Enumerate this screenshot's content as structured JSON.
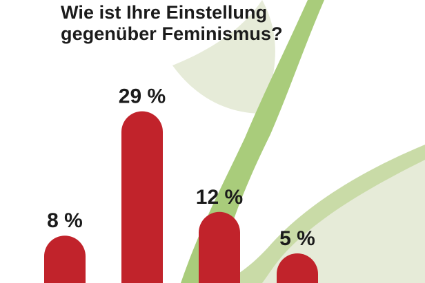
{
  "title_lines": [
    "Wie ist Ihre Einstellung",
    "gegenüber Feminismus?"
  ],
  "colors": {
    "bar": "#c1232b",
    "label": "#1b1b1b",
    "leaf_light": "#e6ebd8",
    "leaf_mid": "#c9dba7",
    "leaf_dark": "#a9cc7b",
    "background": "#ffffff"
  },
  "chart_data": {
    "type": "bar",
    "title": "Wie ist Ihre Einstellung gegenüber Feminismus?",
    "categories": [
      "",
      "",
      "",
      ""
    ],
    "values": [
      8,
      29,
      12,
      5
    ],
    "value_labels": [
      "8 %",
      "29 %",
      "12 %",
      "5 %"
    ],
    "unit": "%",
    "xlabel": "",
    "ylabel": "",
    "ylim": [
      0,
      34
    ],
    "grid": false,
    "legend": "none"
  }
}
